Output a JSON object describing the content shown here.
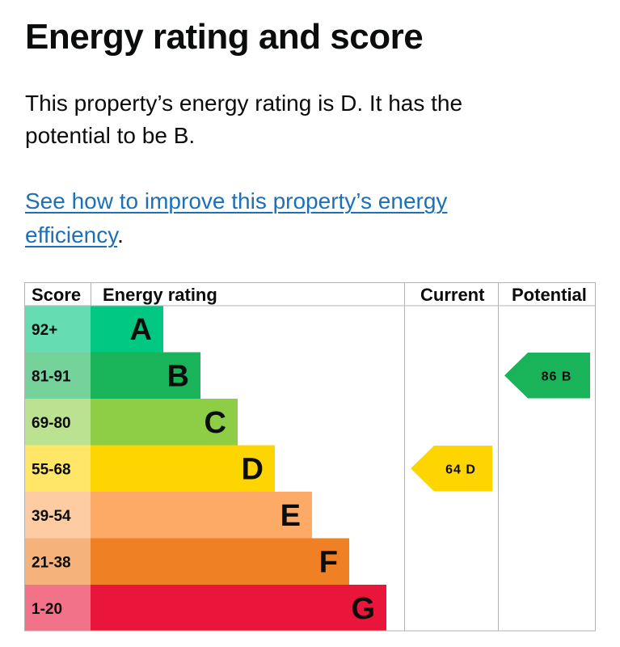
{
  "page": {
    "title": "Energy rating and score",
    "summary": "This property’s energy rating is D. It has the potential to be B.",
    "improve_link": "See how to improve this property’s energy efficiency",
    "improve_suffix": "."
  },
  "colors": {
    "link": "#1d70b8",
    "grid": "#b1b4b6",
    "text": "#0b0c0c"
  },
  "chart_data": {
    "type": "bar",
    "headers": {
      "score": "Score",
      "rating": "Energy rating",
      "current": "Current",
      "potential": "Potential"
    },
    "bands": [
      {
        "letter": "A",
        "range": "92+",
        "color": "#00c781",
        "score_bg": "#66dcb3"
      },
      {
        "letter": "B",
        "range": "81-91",
        "color": "#19b459",
        "score_bg": "#75d29b"
      },
      {
        "letter": "C",
        "range": "69-80",
        "color": "#8dce46",
        "score_bg": "#bbe290"
      },
      {
        "letter": "D",
        "range": "55-68",
        "color": "#ffd500",
        "score_bg": "#ffe666"
      },
      {
        "letter": "E",
        "range": "39-54",
        "color": "#fcaa65",
        "score_bg": "#fdcca3"
      },
      {
        "letter": "F",
        "range": "21-38",
        "color": "#ef8023",
        "score_bg": "#f5b37b"
      },
      {
        "letter": "G",
        "range": "1-20",
        "color": "#e9153b",
        "score_bg": "#f27389"
      }
    ],
    "current": {
      "score": 64,
      "rating": "D",
      "label": "64 D",
      "color": "#ffd500",
      "text_color": "#0b0c0c"
    },
    "potential": {
      "score": 86,
      "rating": "B",
      "label": "86 B",
      "color": "#19b459",
      "text_color": "#0b0c0c"
    }
  }
}
